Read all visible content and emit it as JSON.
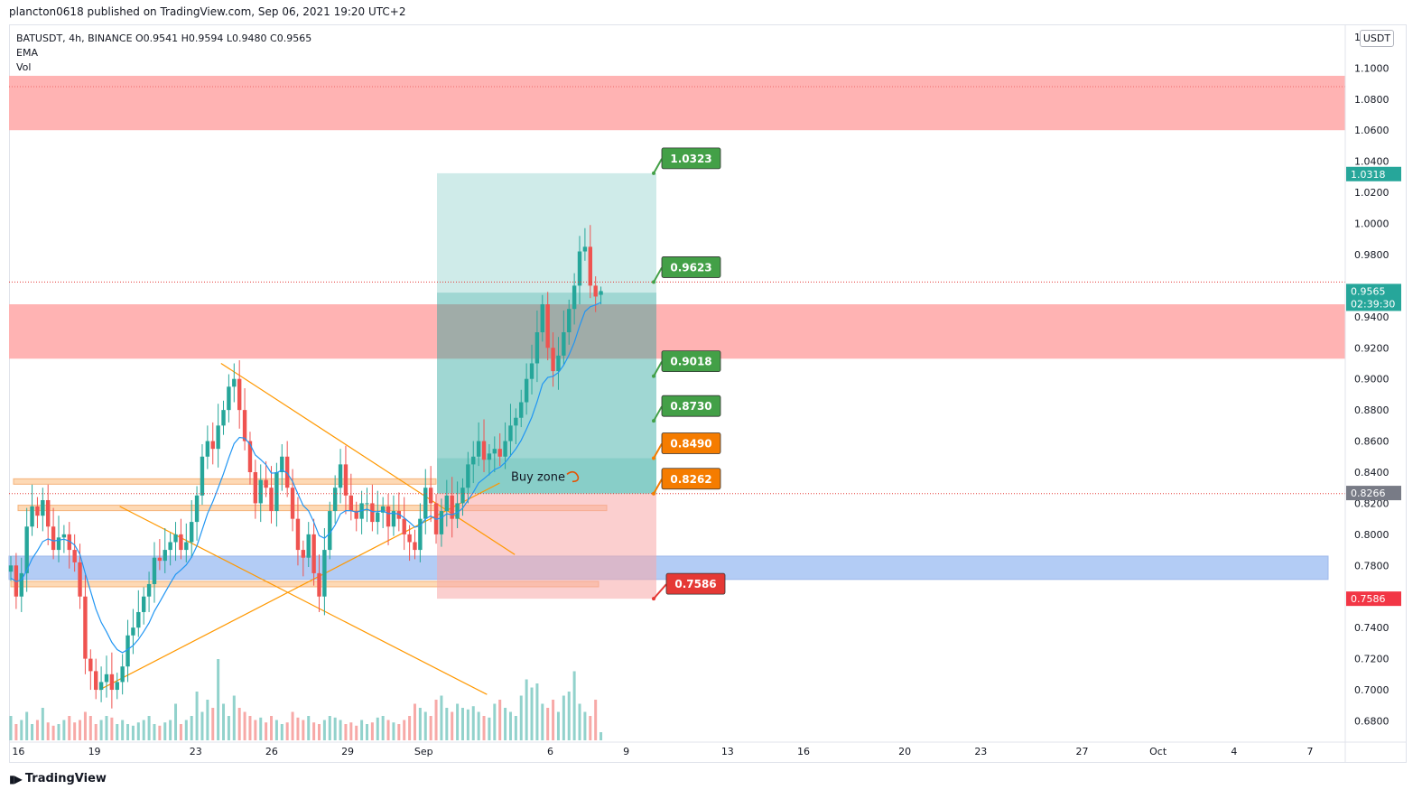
{
  "header": {
    "published_line": "plancton0618 published on TradingView.com, Sep 06, 2021 19:20 UTC+2"
  },
  "legend": {
    "symbol_line": "BATUSDT, 4h, BINANCE  O0.9541  H0.9594  L0.9480  C0.9565",
    "ema_label": "EMA",
    "vol_label": "Vol"
  },
  "axis": {
    "currency": "USDT"
  },
  "footer": {
    "brand": "TradingView"
  },
  "colors": {
    "up": "#26a69a",
    "down": "#ef5350",
    "ema": "#2196f3",
    "resistance_zone": "#ffb3b3",
    "support_zone": "#b3ccf5",
    "channel": "#ff9800",
    "target_box": "#26a69a",
    "stop_box": "#f7a8a8",
    "green_tag": "#43a047",
    "orange_tag": "#f57c00",
    "red_tag": "#e53935"
  },
  "chart_data": {
    "type": "candlestick",
    "symbol": "BATUSDT",
    "timeframe": "4h",
    "exchange": "BINANCE",
    "ohlc_last": {
      "open": 0.9541,
      "high": 0.9594,
      "low": 0.948,
      "close": 0.9565
    },
    "ylim": [
      0.6675,
      1.1275
    ],
    "y_ticks": [
      0.68,
      0.7,
      0.72,
      0.74,
      0.76,
      0.78,
      0.8,
      0.82,
      0.84,
      0.86,
      0.88,
      0.9,
      0.92,
      0.94,
      0.98,
      1.0,
      1.02,
      1.04,
      1.06,
      1.08,
      1.1,
      1.12
    ],
    "x_ticks": [
      {
        "label": "16",
        "d": 16
      },
      {
        "label": "19",
        "d": 19
      },
      {
        "label": "23",
        "d": 23
      },
      {
        "label": "26",
        "d": 26
      },
      {
        "label": "29",
        "d": 29
      },
      {
        "label": "Sep",
        "d": 32
      },
      {
        "label": "6",
        "d": 37
      },
      {
        "label": "9",
        "d": 40
      },
      {
        "label": "13",
        "d": 44
      },
      {
        "label": "16",
        "d": 47
      },
      {
        "label": "20",
        "d": 51
      },
      {
        "label": "23",
        "d": 54
      },
      {
        "label": "27",
        "d": 58
      },
      {
        "label": "Oct",
        "d": 61
      },
      {
        "label": "4",
        "d": 64
      },
      {
        "label": "7",
        "d": 67
      }
    ],
    "series_close": [
      0.78,
      0.76,
      0.775,
      0.805,
      0.818,
      0.812,
      0.822,
      0.805,
      0.79,
      0.798,
      0.8,
      0.79,
      0.782,
      0.76,
      0.72,
      0.712,
      0.7,
      0.705,
      0.71,
      0.7,
      0.705,
      0.715,
      0.735,
      0.74,
      0.75,
      0.76,
      0.768,
      0.785,
      0.783,
      0.79,
      0.795,
      0.8,
      0.79,
      0.795,
      0.808,
      0.825,
      0.85,
      0.86,
      0.855,
      0.87,
      0.88,
      0.895,
      0.9,
      0.88,
      0.86,
      0.84,
      0.82,
      0.835,
      0.83,
      0.815,
      0.84,
      0.85,
      0.83,
      0.81,
      0.79,
      0.785,
      0.8,
      0.775,
      0.76,
      0.79,
      0.815,
      0.83,
      0.845,
      0.825,
      0.815,
      0.81,
      0.82,
      0.82,
      0.808,
      0.814,
      0.818,
      0.805,
      0.815,
      0.81,
      0.8,
      0.795,
      0.79,
      0.81,
      0.83,
      0.82,
      0.8,
      0.815,
      0.825,
      0.81,
      0.82,
      0.83,
      0.845,
      0.85,
      0.86,
      0.848,
      0.852,
      0.855,
      0.85,
      0.86,
      0.87,
      0.875,
      0.885,
      0.9,
      0.91,
      0.93,
      0.948,
      0.92,
      0.905,
      0.915,
      0.93,
      0.945,
      0.96,
      0.982,
      0.985,
      0.96,
      0.953,
      0.9565
    ],
    "series_volume": [
      0.3,
      0.2,
      0.25,
      0.35,
      0.2,
      0.25,
      0.4,
      0.22,
      0.18,
      0.2,
      0.25,
      0.3,
      0.22,
      0.25,
      0.35,
      0.3,
      0.2,
      0.25,
      0.3,
      0.28,
      0.2,
      0.25,
      0.2,
      0.18,
      0.22,
      0.25,
      0.3,
      0.2,
      0.18,
      0.22,
      0.25,
      0.45,
      0.2,
      0.25,
      0.3,
      0.6,
      0.35,
      0.5,
      0.4,
      1.0,
      0.45,
      0.3,
      0.55,
      0.4,
      0.35,
      0.3,
      0.25,
      0.28,
      0.22,
      0.3,
      0.25,
      0.2,
      0.22,
      0.35,
      0.28,
      0.25,
      0.3,
      0.22,
      0.2,
      0.25,
      0.3,
      0.28,
      0.25,
      0.2,
      0.22,
      0.18,
      0.25,
      0.2,
      0.22,
      0.28,
      0.3,
      0.25,
      0.22,
      0.2,
      0.25,
      0.3,
      0.45,
      0.4,
      0.35,
      0.3,
      0.5,
      0.55,
      0.4,
      0.35,
      0.45,
      0.4,
      0.38,
      0.42,
      0.35,
      0.3,
      0.28,
      0.45,
      0.5,
      0.4,
      0.35,
      0.3,
      0.55,
      0.75,
      0.65,
      0.7,
      0.45,
      0.4,
      0.5,
      0.35,
      0.55,
      0.6,
      0.85,
      0.45,
      0.35,
      0.3,
      0.5,
      0.1
    ],
    "ema_start": 0.77,
    "resistance_zones": [
      [
        1.06,
        1.095
      ],
      [
        0.913,
        0.948
      ]
    ],
    "support_zone": [
      0.771,
      0.786
    ],
    "horizontal_lines": [
      0.9623,
      0.8262
    ],
    "orange_levels": [
      0.834,
      0.817,
      0.768
    ],
    "channel_lines": [
      {
        "from": [
          24.0,
          0.91
        ],
        "to": [
          35.6,
          0.787
        ]
      },
      {
        "from": [
          19.2,
          0.7
        ],
        "to": [
          35.0,
          0.833
        ]
      },
      {
        "from": [
          20.0,
          0.818
        ],
        "to": [
          34.5,
          0.697
        ]
      }
    ],
    "position": {
      "entry_top": 0.849,
      "entry_bottom": 0.8262,
      "targets": [
        1.0323,
        0.9623,
        0.9018,
        0.873
      ],
      "stop": 0.7586,
      "mid_fill_top": 0.9555
    },
    "tags": [
      {
        "label": "1.0323",
        "value": 1.0323,
        "color": "green"
      },
      {
        "label": "0.9623",
        "value": 0.9623,
        "color": "green"
      },
      {
        "label": "0.9018",
        "value": 0.9018,
        "color": "green"
      },
      {
        "label": "0.8730",
        "value": 0.873,
        "color": "green"
      },
      {
        "label": "0.8490",
        "value": 0.849,
        "color": "orange"
      },
      {
        "label": "0.8262",
        "value": 0.8262,
        "color": "orange"
      },
      {
        "label": "0.7586",
        "value": 0.7586,
        "color": "red"
      }
    ],
    "price_badges": [
      {
        "label": "1.0318",
        "value": 1.0318,
        "color": "#26a69a"
      },
      {
        "label": "0.9565",
        "sub": "02:39:30",
        "value": 0.9565,
        "color": "#26a69a"
      },
      {
        "label": "0.8266",
        "value": 0.8266,
        "color": "#787b86"
      },
      {
        "label": "0.7586",
        "value": 0.7586,
        "color": "#f23645"
      }
    ],
    "annotation": "Buy zone"
  }
}
